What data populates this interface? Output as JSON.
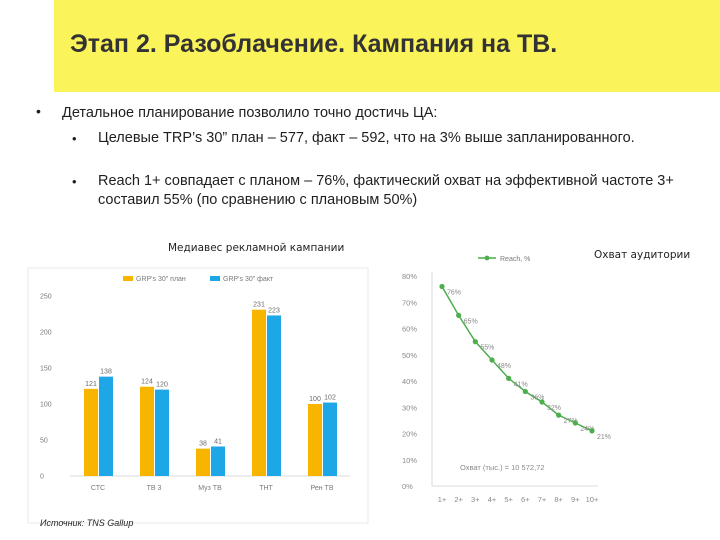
{
  "slide": {
    "title": "Этап 2. Разоблачение. Кампания на ТВ.",
    "main_bullet": "Детальное планирование позволило точно достичь ЦА:",
    "sub_bullets": [
      "Целевые TRP’s 30” план – 577, факт – 592, что на 3% выше запланированного.",
      "Reach 1+ совпадает с планом – 76%, фактический охват на эффективной частоте 3+ составил 55% (по сравнению с плановым 50%)"
    ],
    "source": "Источник: TNS Gallup"
  },
  "colors": {
    "title_band": "#fbf35a",
    "plan": "#f7b500",
    "fact": "#1ea7e6",
    "reach": "#4cae4c"
  },
  "chart_data": [
    {
      "type": "bar",
      "title": "Медиавес рекламной кампании",
      "categories": [
        "СТС",
        "ТВ 3",
        "Муз ТВ",
        "ТНТ",
        "Рен ТВ"
      ],
      "series": [
        {
          "name": "GRP's 30\" план",
          "values": [
            121,
            124,
            38,
            231,
            100
          ]
        },
        {
          "name": "GRP's 30\" факт",
          "values": [
            138,
            120,
            41,
            223,
            102
          ]
        }
      ],
      "yticks": [
        0,
        50,
        100,
        150,
        200,
        250
      ],
      "ylim": [
        0,
        250
      ],
      "legend": "top",
      "grid": false
    },
    {
      "type": "line",
      "title": "Охват аудитории",
      "x": [
        "1+",
        "2+",
        "3+",
        "4+",
        "5+",
        "6+",
        "7+",
        "8+",
        "9+",
        "10+"
      ],
      "series": [
        {
          "name": "Reach, %",
          "values": [
            76,
            65,
            55,
            48,
            41,
            36,
            32,
            27,
            24,
            21
          ],
          "labels": [
            "76%",
            "65%",
            "55%",
            "48%",
            "41%",
            "36%",
            "32%",
            "27%",
            "24%",
            "21%"
          ]
        }
      ],
      "yticks": [
        "0%",
        "10%",
        "20%",
        "30%",
        "40%",
        "50%",
        "60%",
        "70%",
        "80%"
      ],
      "ylim": [
        0,
        80
      ],
      "annotation": "Охват (тыс.) = 10 572,72",
      "legend": "top",
      "grid": false
    }
  ]
}
